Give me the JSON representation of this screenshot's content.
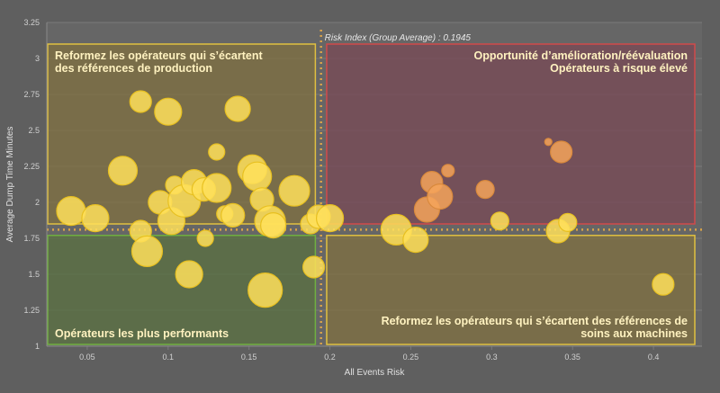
{
  "colors": {
    "background": "#5f5f5f",
    "plot_background": "#666666",
    "grid": "#7a7a7a",
    "axis_text": "#d0d0d0",
    "bubble_yellow": "#ffe05a",
    "bubble_yellow_stroke": "#e8c020",
    "bubble_orange": "#f5a35a",
    "bubble_orange_stroke": "#d9893c",
    "avg_line": "#d9a34a",
    "quadrant_top_left_fill": "#807040",
    "quadrant_top_left_border": "#e0c040",
    "quadrant_top_right_fill": "#7a4a55",
    "quadrant_top_right_border": "#d04a4a",
    "quadrant_bottom_left_fill": "#5a7040",
    "quadrant_bottom_left_border": "#70b040",
    "quadrant_bottom_right_fill": "#807040",
    "quadrant_bottom_right_border": "#e0c040",
    "quadrant_label": "#fff2c0"
  },
  "chart_data": {
    "type": "scatter",
    "subtype": "bubble",
    "title": "",
    "xlabel": "All Events Risk",
    "ylabel": "Average Dump Time Minutes",
    "xlim": [
      0.025,
      0.43
    ],
    "ylim": [
      1.0,
      3.25
    ],
    "x_ticks": [
      0.05,
      0.1,
      0.15,
      0.2,
      0.25,
      0.3,
      0.35,
      0.4
    ],
    "x_tick_labels": [
      "0.05",
      "0.1",
      "0.15",
      "0.2",
      "0.25",
      "0.3",
      "0.35",
      "0.4"
    ],
    "y_ticks": [
      1.0,
      1.25,
      1.5,
      1.75,
      2.0,
      2.25,
      2.5,
      2.75,
      3.0,
      3.25
    ],
    "y_tick_labels": [
      "1",
      "1.25",
      "1.5",
      "1.75",
      "2",
      "2.25",
      "2.5",
      "2.75",
      "3",
      "3.25"
    ],
    "grid": "horizontal",
    "reference_lines": {
      "vertical_x": 0.1945,
      "vertical_label": "Risk Index (Group Average) : 0.1945",
      "horizontal_y": 1.81
    },
    "quadrants": [
      {
        "id": "top_left",
        "x": [
          0.025,
          0.191
        ],
        "y": [
          1.85,
          3.1
        ],
        "label_lines": [
          "Reformez les opérateurs qui s’écartent",
          "des références de production"
        ],
        "align": "left",
        "valign": "top"
      },
      {
        "id": "top_right",
        "x": [
          0.198,
          0.43
        ],
        "y": [
          1.85,
          3.1
        ],
        "label_lines": [
          "Opportunité d’amélioration/réévaluation",
          "Opérateurs à risque élevé"
        ],
        "align": "right",
        "valign": "top"
      },
      {
        "id": "bottom_left",
        "x": [
          0.025,
          0.191
        ],
        "y": [
          1.0,
          1.77
        ],
        "label_lines": [
          "Opérateurs les plus performants"
        ],
        "align": "left",
        "valign": "bottom"
      },
      {
        "id": "bottom_right",
        "x": [
          0.198,
          0.43
        ],
        "y": [
          1.0,
          1.77
        ],
        "label_lines": [
          "Reformez les opérateurs qui s’écartent des références de",
          "soins aux machines"
        ],
        "align": "right",
        "valign": "bottom"
      }
    ],
    "series": [
      {
        "color": "yellow",
        "points": [
          {
            "x": 0.04,
            "y": 1.94,
            "size": 16
          },
          {
            "x": 0.055,
            "y": 1.89,
            "size": 15
          },
          {
            "x": 0.072,
            "y": 2.22,
            "size": 16
          },
          {
            "x": 0.083,
            "y": 1.8,
            "size": 12
          },
          {
            "x": 0.083,
            "y": 2.7,
            "size": 12
          },
          {
            "x": 0.087,
            "y": 1.66,
            "size": 17
          },
          {
            "x": 0.095,
            "y": 2.0,
            "size": 13
          },
          {
            "x": 0.1,
            "y": 2.63,
            "size": 15
          },
          {
            "x": 0.102,
            "y": 1.87,
            "size": 15
          },
          {
            "x": 0.104,
            "y": 2.12,
            "size": 10
          },
          {
            "x": 0.11,
            "y": 2.01,
            "size": 18
          },
          {
            "x": 0.113,
            "y": 1.5,
            "size": 15
          },
          {
            "x": 0.116,
            "y": 2.14,
            "size": 14
          },
          {
            "x": 0.122,
            "y": 2.09,
            "size": 13
          },
          {
            "x": 0.123,
            "y": 1.75,
            "size": 9
          },
          {
            "x": 0.13,
            "y": 2.1,
            "size": 16
          },
          {
            "x": 0.13,
            "y": 2.35,
            "size": 9
          },
          {
            "x": 0.135,
            "y": 1.92,
            "size": 9
          },
          {
            "x": 0.14,
            "y": 1.91,
            "size": 13
          },
          {
            "x": 0.143,
            "y": 2.65,
            "size": 14
          },
          {
            "x": 0.152,
            "y": 2.23,
            "size": 16
          },
          {
            "x": 0.155,
            "y": 2.18,
            "size": 16
          },
          {
            "x": 0.158,
            "y": 2.02,
            "size": 13
          },
          {
            "x": 0.16,
            "y": 1.39,
            "size": 19
          },
          {
            "x": 0.163,
            "y": 1.87,
            "size": 17
          },
          {
            "x": 0.165,
            "y": 1.84,
            "size": 14
          },
          {
            "x": 0.178,
            "y": 2.08,
            "size": 17
          },
          {
            "x": 0.188,
            "y": 1.85,
            "size": 11
          },
          {
            "x": 0.19,
            "y": 1.55,
            "size": 12
          },
          {
            "x": 0.193,
            "y": 1.9,
            "size": 13
          },
          {
            "x": 0.2,
            "y": 1.89,
            "size": 15
          },
          {
            "x": 0.241,
            "y": 1.81,
            "size": 17
          },
          {
            "x": 0.253,
            "y": 1.74,
            "size": 14
          },
          {
            "x": 0.305,
            "y": 1.87,
            "size": 10
          },
          {
            "x": 0.341,
            "y": 1.8,
            "size": 13
          },
          {
            "x": 0.347,
            "y": 1.86,
            "size": 10
          },
          {
            "x": 0.406,
            "y": 1.43,
            "size": 12
          }
        ]
      },
      {
        "color": "orange",
        "points": [
          {
            "x": 0.26,
            "y": 1.95,
            "size": 14
          },
          {
            "x": 0.263,
            "y": 2.14,
            "size": 12
          },
          {
            "x": 0.268,
            "y": 2.04,
            "size": 14
          },
          {
            "x": 0.273,
            "y": 2.22,
            "size": 7
          },
          {
            "x": 0.296,
            "y": 2.09,
            "size": 10
          },
          {
            "x": 0.335,
            "y": 2.42,
            "size": 4
          },
          {
            "x": 0.343,
            "y": 2.35,
            "size": 12
          }
        ]
      }
    ]
  }
}
